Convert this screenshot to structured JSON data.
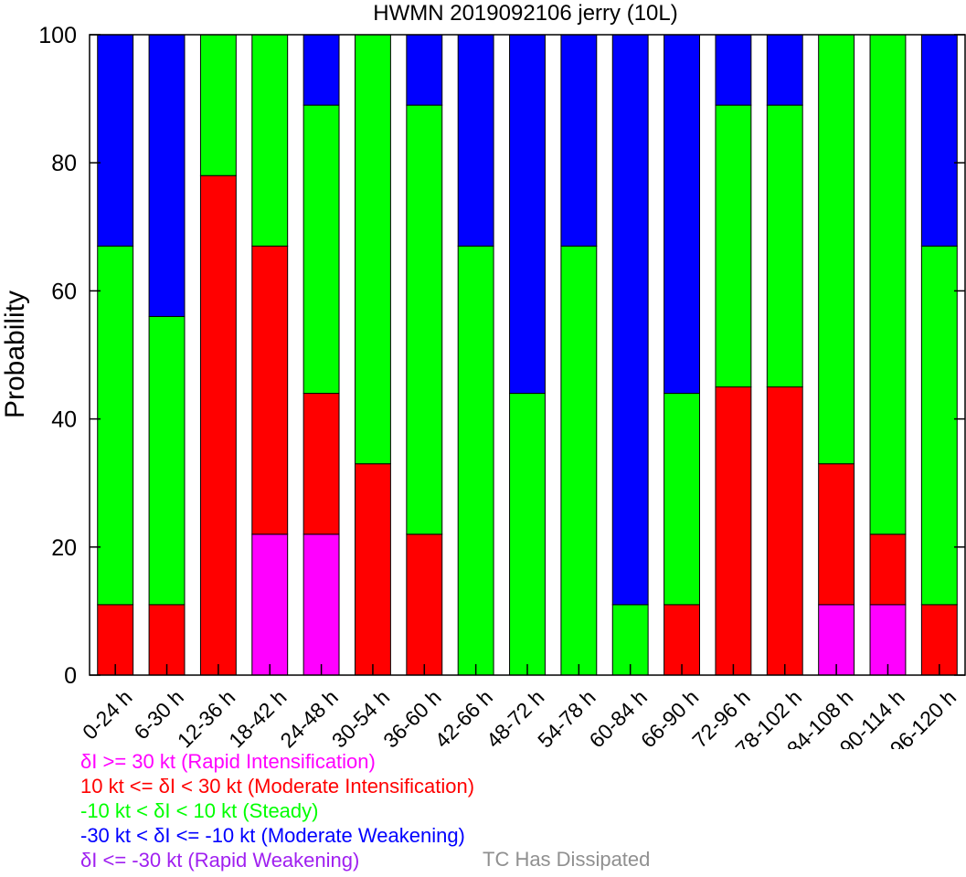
{
  "chart_data": {
    "type": "bar",
    "stacked": true,
    "title": "HWMN 2019092106 jerry (10L)",
    "xlabel": "",
    "ylabel": "Probability",
    "ylim": [
      0,
      100
    ],
    "yticks": [
      0,
      20,
      40,
      60,
      80,
      100
    ],
    "categories": [
      "0-24 h",
      "6-30 h",
      "12-36 h",
      "18-42 h",
      "24-48 h",
      "30-54 h",
      "36-60 h",
      "42-66 h",
      "48-72 h",
      "54-78 h",
      "60-84 h",
      "66-90 h",
      "72-96 h",
      "78-102 h",
      "84-108 h",
      "90-114 h",
      "96-120 h"
    ],
    "series": [
      {
        "name": "δI >= 30 kt (Rapid Intensification)",
        "color": "#ff00ff",
        "values": [
          0,
          0,
          0,
          22,
          22,
          0,
          0,
          0,
          0,
          0,
          0,
          0,
          0,
          0,
          11,
          11,
          0
        ]
      },
      {
        "name": "10 kt <= δI < 30 kt (Moderate Intensification)",
        "color": "#ff0000",
        "values": [
          11,
          11,
          78,
          45,
          22,
          33,
          22,
          0,
          0,
          0,
          0,
          11,
          45,
          45,
          22,
          11,
          11
        ]
      },
      {
        "name": "-10 kt < δI < 10 kt (Steady)",
        "color": "#00ff00",
        "values": [
          56,
          45,
          22,
          33,
          45,
          67,
          67,
          67,
          44,
          67,
          11,
          33,
          44,
          44,
          67,
          78,
          56
        ]
      },
      {
        "name": "-30 kt < δI <= -10 kt (Moderate Weakening)",
        "color": "#0000ff",
        "values": [
          33,
          44,
          0,
          0,
          11,
          0,
          11,
          33,
          56,
          33,
          89,
          56,
          11,
          11,
          0,
          0,
          33
        ]
      },
      {
        "name": "δI <= -30 kt (Rapid Weakening)",
        "color": "#a020f0",
        "values": [
          0,
          0,
          0,
          0,
          0,
          0,
          0,
          0,
          0,
          0,
          0,
          0,
          0,
          0,
          0,
          0,
          0
        ]
      }
    ],
    "extra_legend": {
      "label": "TC Has Dissipated",
      "color": "#909090"
    },
    "grid": false
  }
}
